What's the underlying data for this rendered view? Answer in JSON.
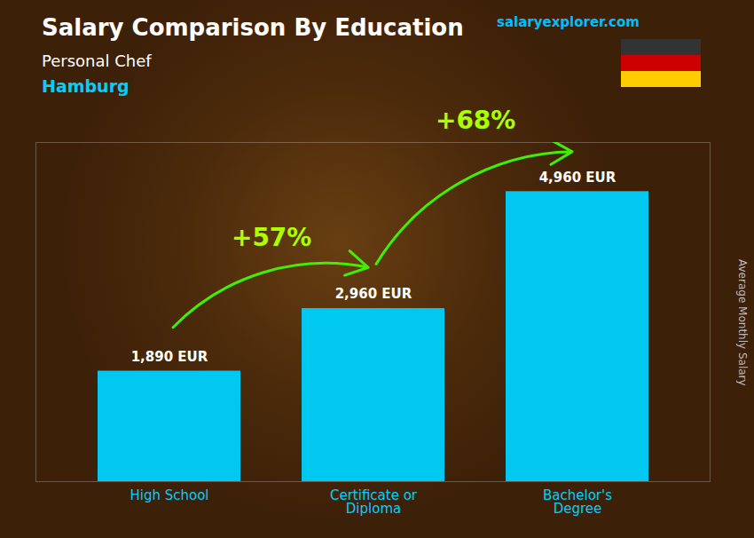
{
  "chart_data": {
    "type": "bar",
    "title": "Salary Comparison By Education",
    "subtitle": [
      "Personal Chef",
      "Hamburg"
    ],
    "ylabel": "Average Monthly Salary",
    "categories": [
      "High School",
      "Certificate or\nDiploma",
      "Bachelor's\nDegree"
    ],
    "values": [
      1890,
      2960,
      4960
    ],
    "value_labels": [
      "1,890 EUR",
      "2,960 EUR",
      "4,960 EUR"
    ],
    "data_labels": true,
    "color": "#00C8F0",
    "ylim": [
      0,
      5800
    ],
    "tick_labels": "x",
    "grid": false,
    "annotations": [
      {
        "text": "+57%",
        "from": "High School",
        "to": "Certificate or\nDiploma"
      },
      {
        "text": "+68%",
        "from": "Certificate or\nDiploma",
        "to": "Bachelor's\nDegree"
      },
      {
        "text": "salaryexplorer.com"
      }
    ]
  }
}
